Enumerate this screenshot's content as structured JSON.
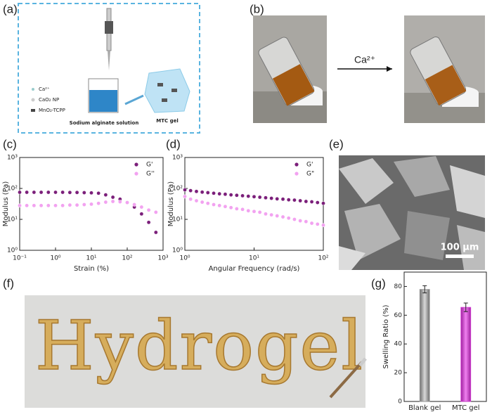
{
  "panel_labels": [
    "(a)",
    "(b)",
    "(c)",
    "(d)",
    "(e)",
    "(f)",
    "(g)"
  ],
  "schematic": {
    "legend": [
      "Ca²⁺",
      "CaO₂ NP",
      "MnO₂-TCPP"
    ],
    "beaker_label": "Sodium alginate solution",
    "gel_label": "MTC gel"
  },
  "photos": {
    "arrow_label": "Ca²⁺"
  },
  "sem": {
    "scale_bar": "100 μm"
  },
  "writing": {
    "word": "Hydrogel"
  },
  "chart_data": [
    {
      "type": "scatter",
      "log_x": true,
      "log_y": true,
      "legend": "upper right",
      "x_label": "Strain (%)",
      "y_label": "Modulus (Pa)",
      "xlim": [
        0.1,
        1000
      ],
      "ylim": [
        1,
        1000
      ],
      "xticks": [
        {
          "value": 0.1,
          "label": "10⁻¹"
        },
        {
          "value": 1,
          "label": "10⁰"
        },
        {
          "value": 10,
          "label": "10¹"
        },
        {
          "value": 100,
          "label": "10²"
        },
        {
          "value": 1000,
          "label": "10³"
        }
      ],
      "yticks": [
        {
          "value": 1,
          "label": "10⁰"
        },
        {
          "value": 10,
          "label": "10¹"
        },
        {
          "value": 100,
          "label": "10²"
        },
        {
          "value": 1000,
          "label": "10³"
        }
      ],
      "x": [
        0.1,
        0.158,
        0.251,
        0.398,
        0.631,
        1,
        1.58,
        2.51,
        3.98,
        6.31,
        10,
        15.8,
        25.1,
        39.8,
        63.1,
        100,
        158,
        251,
        398,
        631
      ],
      "series": [
        {
          "name": "G'",
          "color": "#7b1f7a",
          "values": [
            75,
            75,
            75,
            75,
            75,
            75,
            75,
            74,
            74,
            73,
            72,
            70,
            62,
            52,
            45,
            35,
            25,
            15,
            8,
            3.8
          ]
        },
        {
          "name": "G''",
          "color": "#f2a2f0",
          "values": [
            28,
            28,
            28,
            28,
            28,
            28,
            28,
            29,
            29,
            30,
            31,
            33,
            36,
            38,
            37,
            35,
            30,
            25,
            20,
            17
          ]
        }
      ]
    },
    {
      "type": "scatter",
      "log_x": true,
      "log_y": true,
      "legend": "upper right",
      "x_label": "Angular Frequency (rad/s)",
      "y_label": "Modulus (Pa)",
      "xlim": [
        1,
        100
      ],
      "ylim": [
        1,
        1000
      ],
      "xticks": [
        {
          "value": 1,
          "label": "10⁰"
        },
        {
          "value": 10,
          "label": "10¹"
        },
        {
          "value": 100,
          "label": "10²"
        }
      ],
      "yticks": [
        {
          "value": 1,
          "label": "10⁰"
        },
        {
          "value": 10,
          "label": "10¹"
        },
        {
          "value": 100,
          "label": "10²"
        },
        {
          "value": 1000,
          "label": "10³"
        }
      ],
      "x": [
        1,
        1.21,
        1.47,
        1.78,
        2.15,
        2.61,
        3.16,
        3.83,
        4.64,
        5.62,
        6.81,
        8.25,
        10,
        12.1,
        14.7,
        17.8,
        21.5,
        26.1,
        31.6,
        38.3,
        46.4,
        56.2,
        68.1,
        82.5,
        100
      ],
      "series": [
        {
          "name": "G'",
          "color": "#7b1f7a",
          "values": [
            90,
            85,
            80,
            76,
            73,
            70,
            67,
            65,
            62,
            60,
            58,
            56,
            54,
            52,
            50,
            48,
            46,
            45,
            43,
            42,
            40,
            38,
            37,
            35,
            33
          ]
        },
        {
          "name": "G\"",
          "color": "#f2a2f0",
          "values": [
            55,
            45,
            40,
            36,
            33,
            30,
            28,
            26,
            24,
            22,
            21,
            19,
            18,
            17,
            15,
            14,
            13,
            12,
            11,
            10,
            9,
            8.5,
            7.5,
            7,
            6.5
          ]
        }
      ]
    },
    {
      "type": "bar",
      "y_label": "Swelling Ratio (%)",
      "categories": [
        "Blank gel",
        "MTC gel"
      ],
      "values": [
        78,
        65.5
      ],
      "errors": [
        2.5,
        3
      ],
      "colors": [
        "#9e9e9e",
        "#d63bd6"
      ],
      "ylim": [
        0,
        90
      ],
      "yticks": [
        0,
        20,
        40,
        60,
        80
      ]
    }
  ]
}
